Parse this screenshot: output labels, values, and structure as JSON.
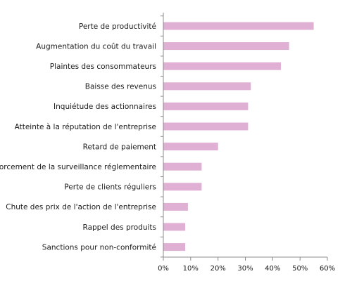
{
  "chart_data": {
    "type": "bar",
    "orientation": "horizontal",
    "categories": [
      "Perte de productivité",
      "Augmentation du coût du travail",
      "Plaintes des consommateurs",
      "Baisse des revenus",
      "Inquiétude des actionnaires",
      "Atteinte à la réputation de l'entreprise",
      "Retard de paiement",
      "Renforcement de la surveillance réglementaire",
      "Perte de clients réguliers",
      "Chute des prix de l'action de l'entreprise",
      "Rappel des produits",
      "Sanctions pour non-conformité"
    ],
    "values": [
      55,
      46,
      43,
      32,
      31,
      31,
      20,
      14,
      14,
      9,
      8,
      8
    ],
    "xlim": [
      0,
      60
    ],
    "x_ticks": [
      0,
      10,
      20,
      30,
      40,
      50,
      60
    ],
    "x_tick_labels": [
      "0%",
      "10%",
      "20%",
      "30%",
      "40%",
      "50%",
      "60%"
    ],
    "title": "",
    "xlabel": "",
    "ylabel": "",
    "grid": false,
    "legend": "none",
    "bar_color": "#e0afd4",
    "axis_color": "#8c8c8c"
  }
}
